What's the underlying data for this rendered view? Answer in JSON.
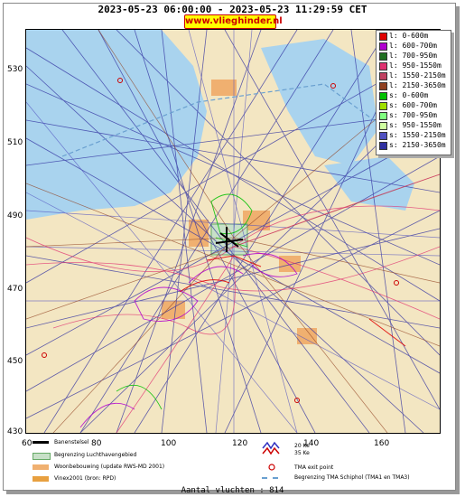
{
  "header": {
    "title": "2023-05-23 06:00:00 - 2023-05-23 11:29:59 CET",
    "site": "www.vlieghinder.nl"
  },
  "axes": {
    "y_ticks": [
      "530",
      "510",
      "490",
      "470",
      "450",
      "430"
    ],
    "x_ticks": [
      "60",
      "80",
      "100",
      "120",
      "140",
      "160"
    ]
  },
  "legend": [
    {
      "label": "l: 0-600m",
      "color": "#e00000"
    },
    {
      "label": "l: 600-700m",
      "color": "#b000d0"
    },
    {
      "label": "l: 700-950m",
      "color": "#207020"
    },
    {
      "label": "l: 950-1550m",
      "color": "#e03070"
    },
    {
      "label": "l: 1550-2150m",
      "color": "#c04060"
    },
    {
      "label": "l: 2150-3650m",
      "color": "#904020"
    },
    {
      "label": "s: 0-600m",
      "color": "#00c000"
    },
    {
      "label": "s: 600-700m",
      "color": "#a0e000"
    },
    {
      "label": "s: 700-950m",
      "color": "#80ff80"
    },
    {
      "label": "s: 950-1550m",
      "color": "#d0ffa0"
    },
    {
      "label": "s: 1550-2150m",
      "color": "#5050c0"
    },
    {
      "label": "s: 2150-3650m",
      "color": "#3030a0"
    }
  ],
  "map_key": {
    "runway": "Banenstelsel",
    "airport_area": "Begrenzing Luchthavengebied",
    "housing": "Woonbebouwing (update RWS-MD 2001)",
    "vinex": "Vinex2001 (bron: RPD)",
    "kv20": "20 Ke",
    "kv35": "35 Ke",
    "tma_exit": "TMA exit point",
    "tma_boundary": "Begrenzing TMA Schiphol  (TMA1 en TMA3)"
  },
  "footer": {
    "count": "Aantal vluchten : 814"
  },
  "colors": {
    "sea": "#a9d3ee",
    "land": "#f3e6c2",
    "urban": "#f0b070"
  }
}
